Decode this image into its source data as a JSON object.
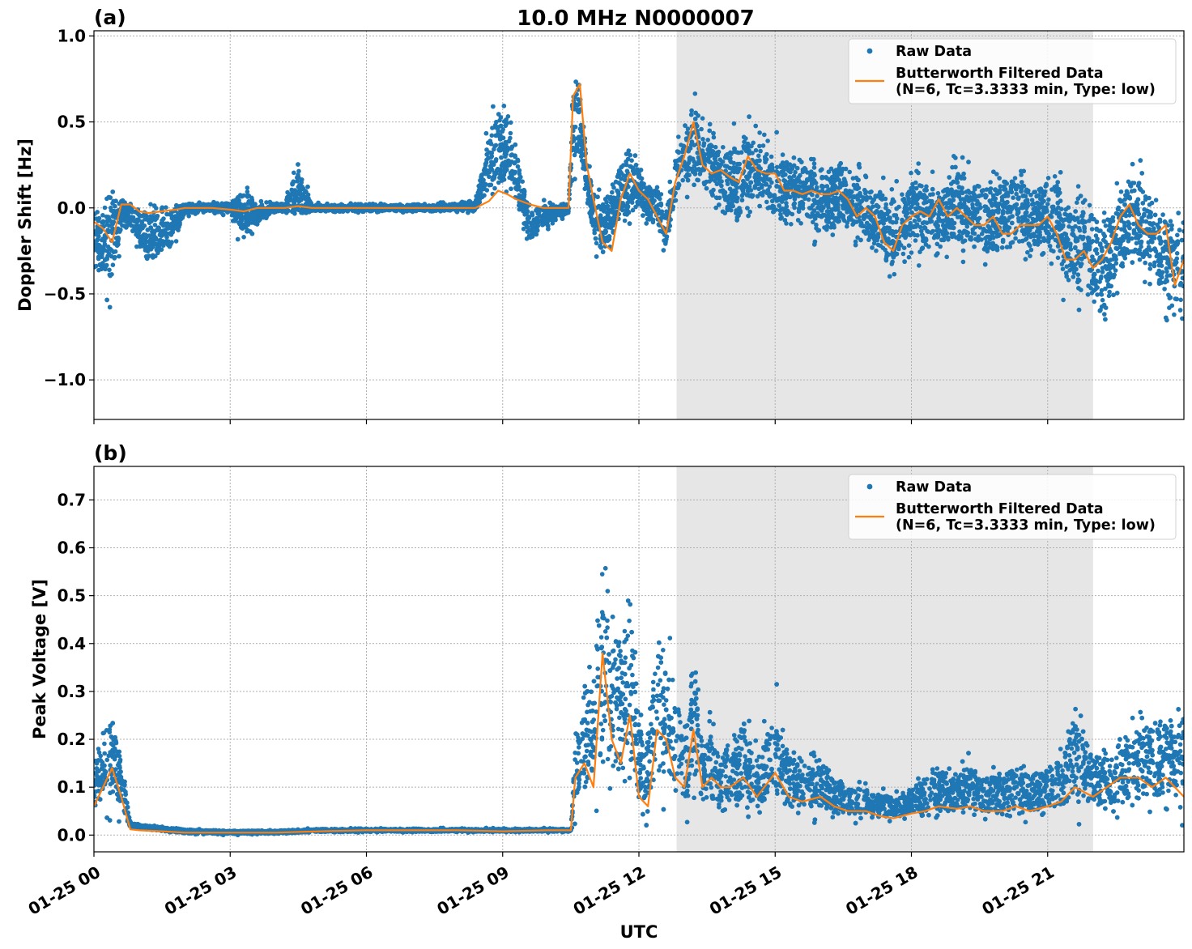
{
  "figure": {
    "title": "10.0 MHz N0000007",
    "xlabel": "UTC"
  },
  "chart_data": [
    {
      "type": "scatter",
      "panel_label": "(a)",
      "title": "10.0 MHz N0000007",
      "xlabel": "UTC",
      "ylabel": "Doppler Shift [Hz]",
      "x_unit": "hours since 01-25 00:00 UTC",
      "xlim": [
        0,
        24
      ],
      "ylim": [
        -1.23,
        1.03
      ],
      "yticks": [
        1.0,
        0.5,
        0.0,
        -0.5,
        -1.0
      ],
      "ytick_labels": [
        "1.0",
        "0.5",
        "0.0",
        "−0.5",
        "−1.0"
      ],
      "xticks": [
        0,
        3,
        6,
        9,
        12,
        15,
        18,
        21
      ],
      "xtick_labels": [
        "",
        "",
        "",
        "",
        "",
        "",
        "",
        ""
      ],
      "grid": true,
      "legend_position": "top-right",
      "shaded_region": {
        "x_start": 12.83,
        "x_end": 22.0,
        "color": "#e6e6e6"
      },
      "series": [
        {
          "name": "Raw Data",
          "style": "points",
          "color": "#1f77b4",
          "envelope": {
            "x": [
              0,
              0.2,
              0.4,
              0.6,
              0.8,
              1.0,
              1.2,
              1.5,
              1.8,
              2.0,
              2.3,
              2.6,
              3.0,
              3.3,
              3.6,
              3.9,
              4.2,
              4.5,
              4.8,
              5.2,
              5.6,
              6.0,
              6.5,
              7.0,
              7.5,
              8.0,
              8.4,
              8.7,
              8.9,
              9.1,
              9.3,
              9.6,
              9.9,
              10.2,
              10.45,
              10.55,
              10.7,
              10.85,
              11.0,
              11.2,
              11.4,
              11.6,
              11.8,
              12.0,
              12.2,
              12.4,
              12.6,
              12.8,
              13.0,
              13.2,
              13.4,
              13.6,
              13.8,
              14.0,
              14.2,
              14.4,
              14.6,
              14.8,
              15.0,
              15.2,
              15.4,
              15.6,
              15.8,
              16.0,
              16.2,
              16.4,
              16.6,
              16.8,
              17.0,
              17.2,
              17.4,
              17.6,
              17.8,
              18.0,
              18.2,
              18.4,
              18.6,
              18.8,
              19.0,
              19.2,
              19.4,
              19.6,
              19.8,
              20.0,
              20.2,
              20.4,
              20.6,
              20.8,
              21.0,
              21.2,
              21.4,
              21.6,
              21.8,
              22.0,
              22.2,
              22.4,
              22.6,
              22.8,
              23.0,
              23.2,
              23.4,
              23.6,
              23.8,
              24.0
            ],
            "low": [
              -0.35,
              -0.55,
              -0.6,
              -0.2,
              -0.15,
              -0.3,
              -0.45,
              -0.35,
              -0.25,
              -0.06,
              -0.04,
              -0.03,
              -0.05,
              -0.3,
              -0.12,
              -0.05,
              -0.04,
              -0.15,
              -0.03,
              -0.03,
              -0.03,
              -0.03,
              -0.03,
              -0.03,
              -0.03,
              -0.03,
              -0.03,
              0.0,
              0.0,
              0.02,
              0.0,
              -0.25,
              -0.15,
              -0.1,
              -0.05,
              0.15,
              0.15,
              -0.05,
              -0.3,
              -0.35,
              -0.28,
              -0.15,
              -0.2,
              -0.05,
              -0.1,
              -0.2,
              -0.3,
              -0.05,
              0.05,
              0.05,
              0.0,
              -0.05,
              -0.1,
              -0.15,
              -0.2,
              -0.1,
              -0.05,
              -0.1,
              -0.25,
              -0.2,
              -0.15,
              -0.15,
              -0.2,
              -0.3,
              -0.25,
              -0.2,
              -0.2,
              -0.25,
              -0.3,
              -0.35,
              -0.45,
              -0.5,
              -0.45,
              -0.35,
              -0.35,
              -0.3,
              -0.35,
              -0.3,
              -0.35,
              -0.4,
              -0.3,
              -0.4,
              -0.4,
              -0.35,
              -0.3,
              -0.3,
              -0.35,
              -0.35,
              -0.4,
              -0.5,
              -0.55,
              -0.6,
              -0.6,
              -0.7,
              -0.9,
              -0.65,
              -0.5,
              -0.45,
              -0.45,
              -0.5,
              -0.55,
              -0.75,
              -0.85,
              -0.6
            ],
            "high": [
              0.05,
              0.2,
              0.3,
              0.1,
              0.05,
              0.05,
              0.1,
              0.08,
              0.07,
              0.05,
              0.04,
              0.04,
              0.05,
              0.25,
              0.05,
              0.05,
              0.04,
              0.35,
              0.03,
              0.03,
              0.03,
              0.03,
              0.03,
              0.03,
              0.03,
              0.04,
              0.05,
              0.55,
              0.7,
              0.65,
              0.4,
              0.05,
              0.05,
              0.05,
              0.05,
              0.85,
              0.9,
              0.35,
              0.2,
              0.1,
              0.2,
              0.35,
              0.45,
              0.3,
              0.15,
              0.2,
              0.05,
              0.4,
              0.55,
              0.7,
              0.55,
              0.5,
              0.45,
              0.45,
              0.55,
              0.6,
              0.5,
              0.45,
              0.45,
              0.4,
              0.35,
              0.35,
              0.35,
              0.35,
              0.35,
              0.4,
              0.3,
              0.3,
              0.25,
              0.2,
              0.2,
              0.25,
              0.3,
              0.3,
              0.3,
              0.2,
              0.25,
              0.25,
              0.4,
              0.3,
              0.25,
              0.3,
              0.25,
              0.3,
              0.3,
              0.35,
              0.2,
              0.25,
              0.35,
              0.4,
              0.15,
              0.1,
              0.2,
              0.15,
              0.1,
              0.15,
              0.2,
              0.3,
              0.4,
              0.2,
              0.1,
              0.15,
              0.1,
              0.05
            ]
          }
        },
        {
          "name": "Butterworth Filtered Data\n(N=6, Tc=3.3333 min, Type: low)",
          "style": "line",
          "color": "#ff7f0e",
          "x": [
            0,
            0.2,
            0.4,
            0.6,
            0.8,
            1.0,
            1.2,
            1.5,
            1.8,
            2.0,
            2.3,
            2.6,
            3.0,
            3.3,
            3.6,
            3.9,
            4.2,
            4.5,
            4.8,
            5.2,
            5.6,
            6.0,
            6.5,
            7.0,
            7.5,
            8.0,
            8.4,
            8.7,
            8.9,
            9.1,
            9.3,
            9.6,
            9.9,
            10.2,
            10.45,
            10.55,
            10.7,
            10.85,
            11.0,
            11.2,
            11.4,
            11.6,
            11.8,
            12.0,
            12.2,
            12.4,
            12.6,
            12.8,
            13.0,
            13.2,
            13.4,
            13.6,
            13.8,
            14.0,
            14.2,
            14.4,
            14.6,
            14.8,
            15.0,
            15.2,
            15.4,
            15.6,
            15.8,
            16.0,
            16.2,
            16.4,
            16.6,
            16.8,
            17.0,
            17.2,
            17.4,
            17.6,
            17.8,
            18.0,
            18.2,
            18.4,
            18.6,
            18.8,
            19.0,
            19.2,
            19.4,
            19.6,
            19.8,
            20.0,
            20.2,
            20.4,
            20.6,
            20.8,
            21.0,
            21.2,
            21.4,
            21.6,
            21.8,
            22.0,
            22.2,
            22.4,
            22.6,
            22.8,
            23.0,
            23.2,
            23.4,
            23.6,
            23.8,
            24.0
          ],
          "y": [
            -0.08,
            -0.12,
            -0.2,
            0.02,
            0.02,
            -0.02,
            -0.03,
            -0.02,
            -0.01,
            0.0,
            0.0,
            0.0,
            -0.01,
            -0.02,
            0.0,
            0.0,
            0.0,
            0.01,
            0.0,
            0.0,
            0.0,
            0.0,
            0.0,
            0.0,
            0.0,
            0.0,
            0.0,
            0.04,
            0.1,
            0.08,
            0.05,
            0.02,
            0.0,
            0.0,
            0.0,
            0.65,
            0.72,
            0.25,
            0.05,
            -0.2,
            -0.25,
            0.05,
            0.2,
            0.1,
            0.05,
            -0.05,
            -0.15,
            0.15,
            0.3,
            0.5,
            0.25,
            0.2,
            0.22,
            0.18,
            0.15,
            0.3,
            0.22,
            0.2,
            0.2,
            0.1,
            0.1,
            0.08,
            0.1,
            0.08,
            0.08,
            0.1,
            0.05,
            -0.05,
            0.0,
            -0.05,
            -0.2,
            -0.25,
            -0.1,
            -0.05,
            -0.02,
            -0.05,
            0.05,
            -0.05,
            0.0,
            -0.05,
            -0.1,
            -0.1,
            -0.05,
            -0.15,
            -0.15,
            -0.1,
            -0.1,
            -0.1,
            -0.05,
            -0.15,
            -0.3,
            -0.3,
            -0.25,
            -0.35,
            -0.3,
            -0.2,
            -0.05,
            0.02,
            -0.1,
            -0.15,
            -0.15,
            -0.1,
            -0.45,
            -0.3
          ]
        }
      ]
    },
    {
      "type": "scatter",
      "panel_label": "(b)",
      "xlabel": "UTC",
      "ylabel": "Peak Voltage [V]",
      "x_unit": "hours since 01-25 00:00 UTC",
      "xlim": [
        0,
        24
      ],
      "ylim": [
        -0.035,
        0.77
      ],
      "yticks": [
        0.0,
        0.1,
        0.2,
        0.3,
        0.4,
        0.5,
        0.6,
        0.7
      ],
      "ytick_labels": [
        "0.0",
        "0.1",
        "0.2",
        "0.3",
        "0.4",
        "0.5",
        "0.6",
        "0.7"
      ],
      "xticks": [
        0,
        3,
        6,
        9,
        12,
        15,
        18,
        21
      ],
      "xtick_labels": [
        "01-25 00",
        "01-25 03",
        "01-25 06",
        "01-25 09",
        "01-25 12",
        "01-25 15",
        "01-25 18",
        "01-25 21"
      ],
      "grid": true,
      "legend_position": "top-right",
      "shaded_region": {
        "x_start": 12.83,
        "x_end": 22.0,
        "color": "#e6e6e6"
      },
      "series": [
        {
          "name": "Raw Data",
          "style": "points",
          "color": "#1f77b4",
          "envelope": {
            "x": [
              0,
              0.2,
              0.4,
              0.6,
              0.8,
              1.0,
              1.5,
              2.0,
              3.0,
              4.0,
              5.0,
              6.0,
              7.0,
              8.0,
              9.0,
              10.0,
              10.5,
              10.6,
              10.8,
              11.0,
              11.2,
              11.4,
              11.6,
              11.8,
              12.0,
              12.2,
              12.4,
              12.6,
              12.8,
              13.0,
              13.2,
              13.4,
              13.6,
              13.8,
              14.0,
              14.3,
              14.6,
              15.0,
              15.3,
              15.6,
              16.0,
              16.3,
              16.6,
              17.0,
              17.3,
              17.6,
              18.0,
              18.3,
              18.6,
              19.0,
              19.3,
              19.6,
              20.0,
              20.3,
              20.6,
              21.0,
              21.3,
              21.6,
              22.0,
              22.3,
              22.6,
              23.0,
              23.3,
              23.6,
              24.0
            ],
            "low": [
              0.02,
              0.02,
              0.03,
              0.02,
              0.01,
              0.01,
              0.005,
              0.0,
              0.0,
              0.0,
              0.005,
              0.005,
              0.005,
              0.005,
              0.005,
              0.005,
              0.005,
              0.02,
              0.02,
              0.02,
              0.01,
              0.02,
              0.02,
              0.02,
              0.02,
              0.02,
              0.02,
              0.02,
              0.02,
              0.02,
              0.02,
              0.02,
              0.02,
              0.02,
              0.02,
              0.02,
              0.02,
              0.02,
              0.02,
              0.02,
              0.02,
              0.02,
              0.02,
              0.02,
              0.02,
              0.02,
              0.02,
              0.02,
              0.02,
              0.02,
              0.02,
              0.02,
              0.02,
              0.02,
              0.02,
              0.02,
              0.02,
              0.02,
              0.02,
              0.02,
              0.02,
              0.02,
              0.02,
              0.02,
              0.02
            ],
            "high": [
              0.18,
              0.28,
              0.3,
              0.2,
              0.03,
              0.025,
              0.02,
              0.015,
              0.012,
              0.012,
              0.015,
              0.015,
              0.015,
              0.015,
              0.015,
              0.015,
              0.015,
              0.25,
              0.38,
              0.4,
              0.73,
              0.55,
              0.5,
              0.62,
              0.3,
              0.25,
              0.53,
              0.5,
              0.4,
              0.25,
              0.46,
              0.25,
              0.27,
              0.2,
              0.25,
              0.3,
              0.2,
              0.33,
              0.2,
              0.18,
              0.2,
              0.15,
              0.12,
              0.12,
              0.1,
              0.1,
              0.12,
              0.15,
              0.18,
              0.15,
              0.18,
              0.15,
              0.15,
              0.18,
              0.15,
              0.18,
              0.2,
              0.32,
              0.2,
              0.22,
              0.25,
              0.28,
              0.3,
              0.3,
              0.3
            ]
          }
        },
        {
          "name": "Butterworth Filtered Data\n(N=6, Tc=3.3333 min, Type: low)",
          "style": "line",
          "color": "#ff7f0e",
          "x": [
            0,
            0.2,
            0.4,
            0.6,
            0.8,
            1.0,
            1.5,
            2.0,
            3.0,
            4.0,
            5.0,
            6.0,
            7.0,
            8.0,
            9.0,
            10.0,
            10.5,
            10.6,
            10.8,
            11.0,
            11.2,
            11.4,
            11.6,
            11.8,
            12.0,
            12.2,
            12.4,
            12.6,
            12.8,
            13.0,
            13.2,
            13.4,
            13.6,
            13.8,
            14.0,
            14.3,
            14.6,
            15.0,
            15.3,
            15.6,
            16.0,
            16.3,
            16.6,
            17.0,
            17.3,
            17.6,
            18.0,
            18.3,
            18.6,
            19.0,
            19.3,
            19.6,
            20.0,
            20.3,
            20.6,
            21.0,
            21.3,
            21.6,
            22.0,
            22.3,
            22.6,
            23.0,
            23.3,
            23.6,
            24.0
          ],
          "y": [
            0.06,
            0.1,
            0.14,
            0.08,
            0.012,
            0.01,
            0.008,
            0.005,
            0.005,
            0.005,
            0.008,
            0.01,
            0.01,
            0.01,
            0.008,
            0.01,
            0.01,
            0.12,
            0.15,
            0.1,
            0.38,
            0.2,
            0.15,
            0.25,
            0.08,
            0.06,
            0.22,
            0.2,
            0.12,
            0.1,
            0.22,
            0.1,
            0.12,
            0.1,
            0.1,
            0.12,
            0.08,
            0.13,
            0.08,
            0.07,
            0.08,
            0.06,
            0.05,
            0.05,
            0.04,
            0.035,
            0.045,
            0.05,
            0.06,
            0.055,
            0.06,
            0.05,
            0.05,
            0.06,
            0.05,
            0.06,
            0.07,
            0.1,
            0.08,
            0.1,
            0.12,
            0.12,
            0.1,
            0.12,
            0.08
          ]
        }
      ]
    }
  ]
}
